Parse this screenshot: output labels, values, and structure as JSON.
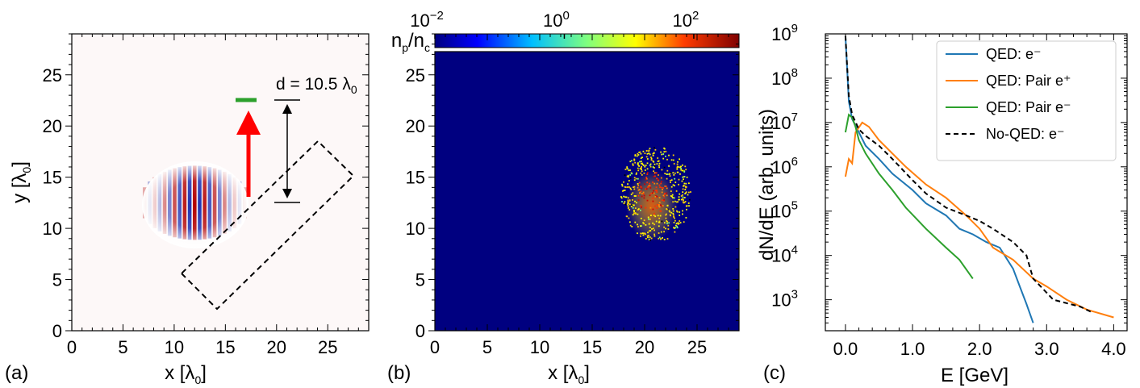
{
  "panels": {
    "a": {
      "label": "(a)",
      "xlabel": "x [λ",
      "xlabel_sub": "0",
      "xlabel_end": "]",
      "ylabel": "y [λ",
      "ylabel_sub": "0",
      "ylabel_end": "]"
    },
    "b": {
      "label": "(b)",
      "xlabel": "x [λ",
      "xlabel_sub": "0",
      "xlabel_end": "]"
    },
    "c": {
      "label": "(c)",
      "xlabel": "E [GeV]",
      "ylabel": "dN/dE (arb. units)"
    }
  },
  "annotation": {
    "text": "d = 10.5 λ",
    "sub": "0"
  },
  "colorbar": {
    "label": "n",
    "label_sub1": "p",
    "slash": "/n",
    "label_sub2": "c",
    "ticks": [
      {
        "base": "10",
        "exp": "−2"
      },
      {
        "base": "10",
        "exp": "0"
      },
      {
        "base": "10",
        "exp": "2"
      }
    ]
  },
  "colors": {
    "qed_e": "#1f77b4",
    "pair_pos": "#ff7f0e",
    "pair_e": "#2ca02c",
    "noqed_e": "#000000",
    "marker_green": "#2ca02c",
    "arrow_red": "#ff0000",
    "background_map": "#000080"
  },
  "chart_data": [
    {
      "type": "heatmap",
      "panel": "a",
      "xlim": [
        0,
        29
      ],
      "ylim": [
        0,
        29
      ],
      "xticks": [
        "0",
        "5",
        "10",
        "15",
        "20",
        "25"
      ],
      "yticks": [
        "0",
        "5",
        "10",
        "15",
        "20",
        "25"
      ],
      "pulse_center": [
        12,
        12.5
      ],
      "target_box_corners": [
        [
          10.5,
          5.5
        ],
        [
          14,
          2
        ],
        [
          27,
          15
        ],
        [
          23.5,
          18.5
        ]
      ],
      "green_marker": {
        "x": [
          16,
          18
        ],
        "y": 22.5
      },
      "distance_bar": {
        "x": 20.5,
        "y": [
          12.5,
          22.5
        ]
      }
    },
    {
      "type": "heatmap",
      "panel": "b",
      "xlim": [
        0,
        29
      ],
      "ylim": [
        0,
        29
      ],
      "xticks": [
        "0",
        "5",
        "10",
        "15",
        "20",
        "25"
      ],
      "yticks": [
        "0",
        "5",
        "10",
        "15",
        "20",
        "25"
      ],
      "colorscale": "log",
      "crange": [
        0.01,
        500
      ],
      "cluster_center": [
        21,
        13.5
      ]
    },
    {
      "type": "line",
      "panel": "c",
      "xlim": [
        -0.3,
        4.2
      ],
      "ylim": [
        200,
        1000000000
      ],
      "yscale": "log",
      "xticks": [
        "0.0",
        "1.0",
        "2.0",
        "3.0",
        "4.0"
      ],
      "ytick_exponents": [
        "3",
        "4",
        "5",
        "6",
        "7",
        "8",
        "9"
      ],
      "legend_position": "top-right",
      "series": [
        {
          "name": "QED: e⁻",
          "x": [
            0.0,
            0.05,
            0.1,
            0.2,
            0.3,
            0.5,
            0.7,
            1.0,
            1.2,
            1.5,
            1.7,
            1.9,
            2.1,
            2.3,
            2.5,
            2.6,
            2.7,
            2.8
          ],
          "y": [
            900000000,
            30000000,
            12000000,
            6000000,
            3000000,
            1500000,
            700000,
            300000,
            150000,
            80000,
            40000,
            30000,
            20000,
            15000,
            5000,
            2000,
            800,
            300
          ]
        },
        {
          "name": "QED: Pair e⁺",
          "x": [
            0.0,
            0.05,
            0.1,
            0.15,
            0.25,
            0.35,
            0.5,
            0.7,
            0.9,
            1.2,
            1.5,
            1.8,
            2.0,
            2.2,
            2.5,
            2.8,
            3.0,
            3.3,
            3.6,
            4.0
          ],
          "y": [
            600000,
            1500000,
            1200000,
            6000000,
            10000000,
            8000000,
            4000000,
            2000000,
            1000000,
            400000,
            200000,
            80000,
            40000,
            15000,
            8000,
            3000,
            2000,
            1000,
            600,
            400
          ]
        },
        {
          "name": "QED: Pair e⁻",
          "x": [
            0.0,
            0.05,
            0.1,
            0.15,
            0.2,
            0.3,
            0.5,
            0.7,
            0.9,
            1.2,
            1.5,
            1.7,
            1.9
          ],
          "y": [
            6000000,
            15000000,
            13000000,
            8000000,
            4000000,
            2000000,
            700000,
            300000,
            120000,
            40000,
            15000,
            8000,
            3000
          ]
        },
        {
          "name": "No-QED: e⁻",
          "x": [
            0.0,
            0.05,
            0.1,
            0.2,
            0.3,
            0.5,
            0.7,
            1.0,
            1.2,
            1.5,
            1.8,
            2.0,
            2.2,
            2.5,
            2.7,
            2.8,
            3.1,
            3.5,
            3.7
          ],
          "y": [
            900000000,
            40000000,
            15000000,
            7000000,
            5000000,
            3000000,
            1500000,
            500000,
            250000,
            120000,
            80000,
            60000,
            40000,
            20000,
            10000,
            3000,
            1000,
            700,
            500
          ]
        }
      ]
    }
  ]
}
